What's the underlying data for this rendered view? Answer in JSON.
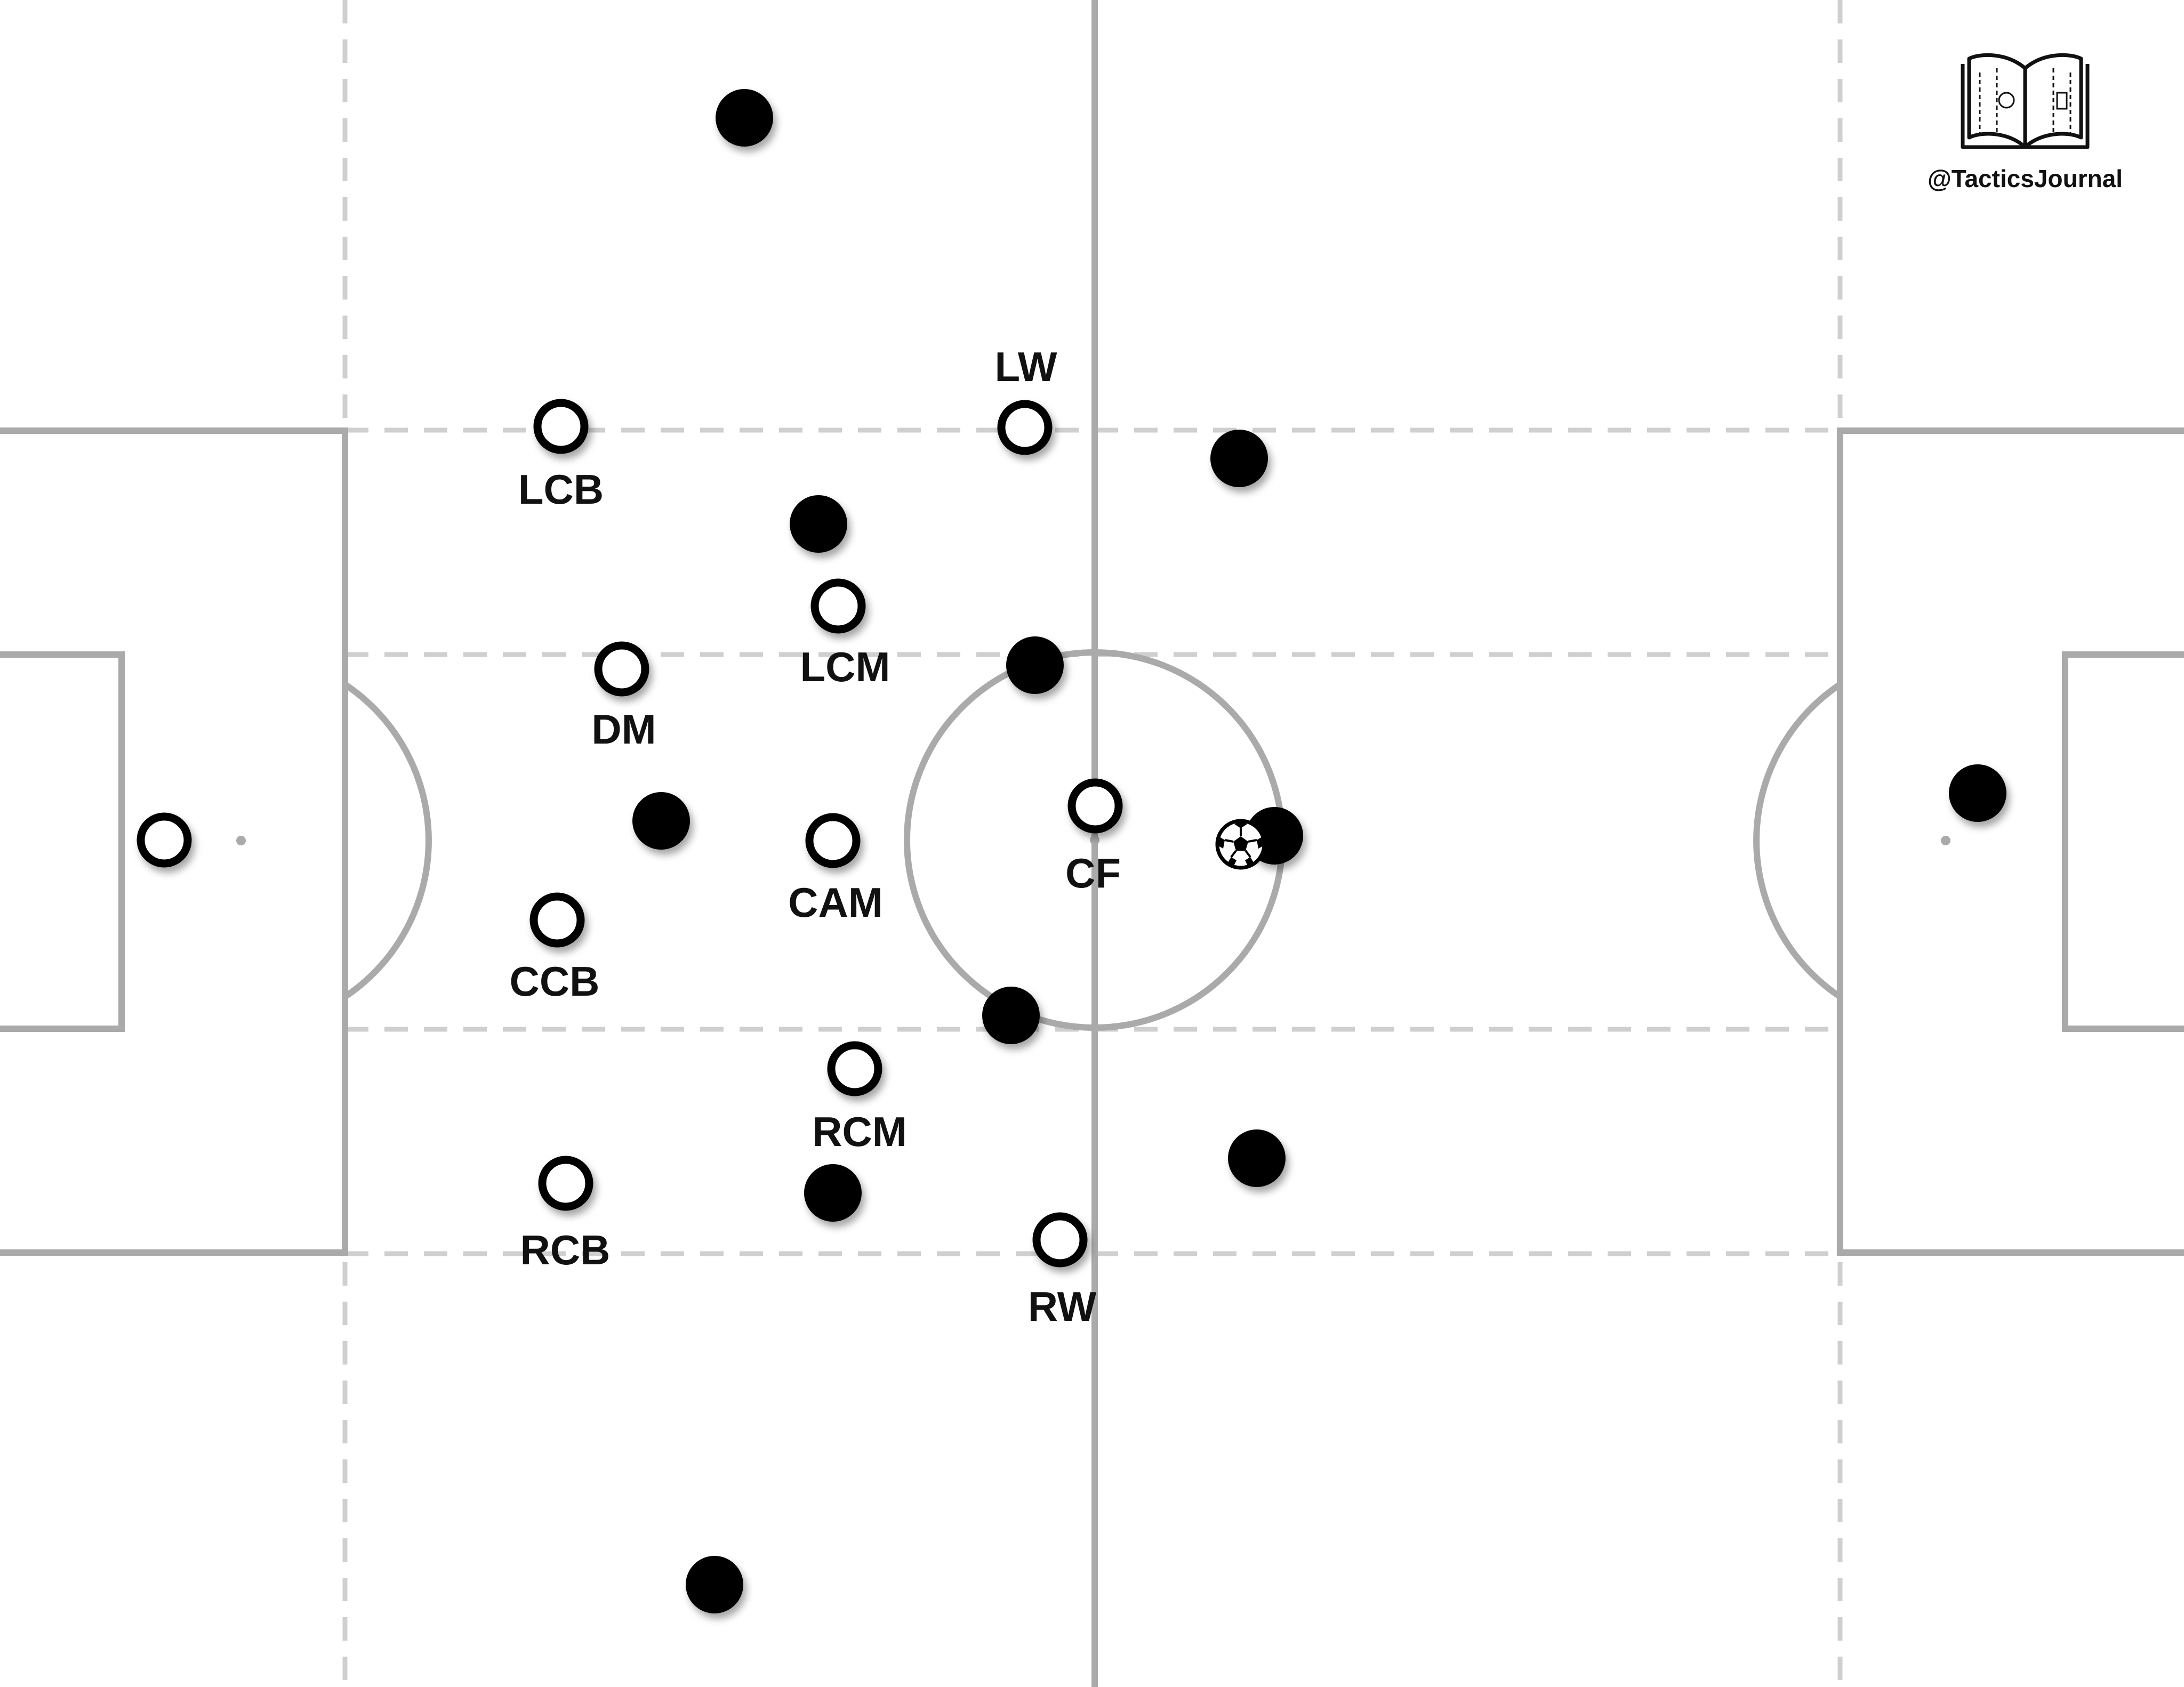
{
  "watermark": {
    "handle": "@TacticsJournal",
    "logo": "open-book-pitch-icon"
  },
  "colors": {
    "pitch_line": "#aaaaaa",
    "zone_line": "#cfcfcf",
    "team_outlined": "#ffffff",
    "team_filled": "#000000"
  },
  "ball": {
    "icon": "football-icon",
    "carrier": "filled team, center circle right edge"
  },
  "team_outlined": {
    "style": "white circle, black outline",
    "players": [
      {
        "id": "gk",
        "label": ""
      },
      {
        "id": "lcb",
        "label": "LCB"
      },
      {
        "id": "dm",
        "label": "DM"
      },
      {
        "id": "ccb",
        "label": "CCB"
      },
      {
        "id": "rcb",
        "label": "RCB"
      },
      {
        "id": "lcm",
        "label": "LCM"
      },
      {
        "id": "cam",
        "label": "CAM"
      },
      {
        "id": "rcm",
        "label": "RCM"
      },
      {
        "id": "lw",
        "label": "LW"
      },
      {
        "id": "cf",
        "label": "CF"
      },
      {
        "id": "rw",
        "label": "RW"
      }
    ]
  },
  "team_filled": {
    "style": "solid black circle",
    "players": [
      {
        "id": "f1"
      },
      {
        "id": "f2"
      },
      {
        "id": "f3"
      },
      {
        "id": "f4"
      },
      {
        "id": "f5"
      },
      {
        "id": "f6"
      },
      {
        "id": "f7"
      },
      {
        "id": "f8"
      },
      {
        "id": "f9"
      },
      {
        "id": "f10"
      },
      {
        "id": "f11"
      },
      {
        "id": "f12"
      }
    ]
  }
}
